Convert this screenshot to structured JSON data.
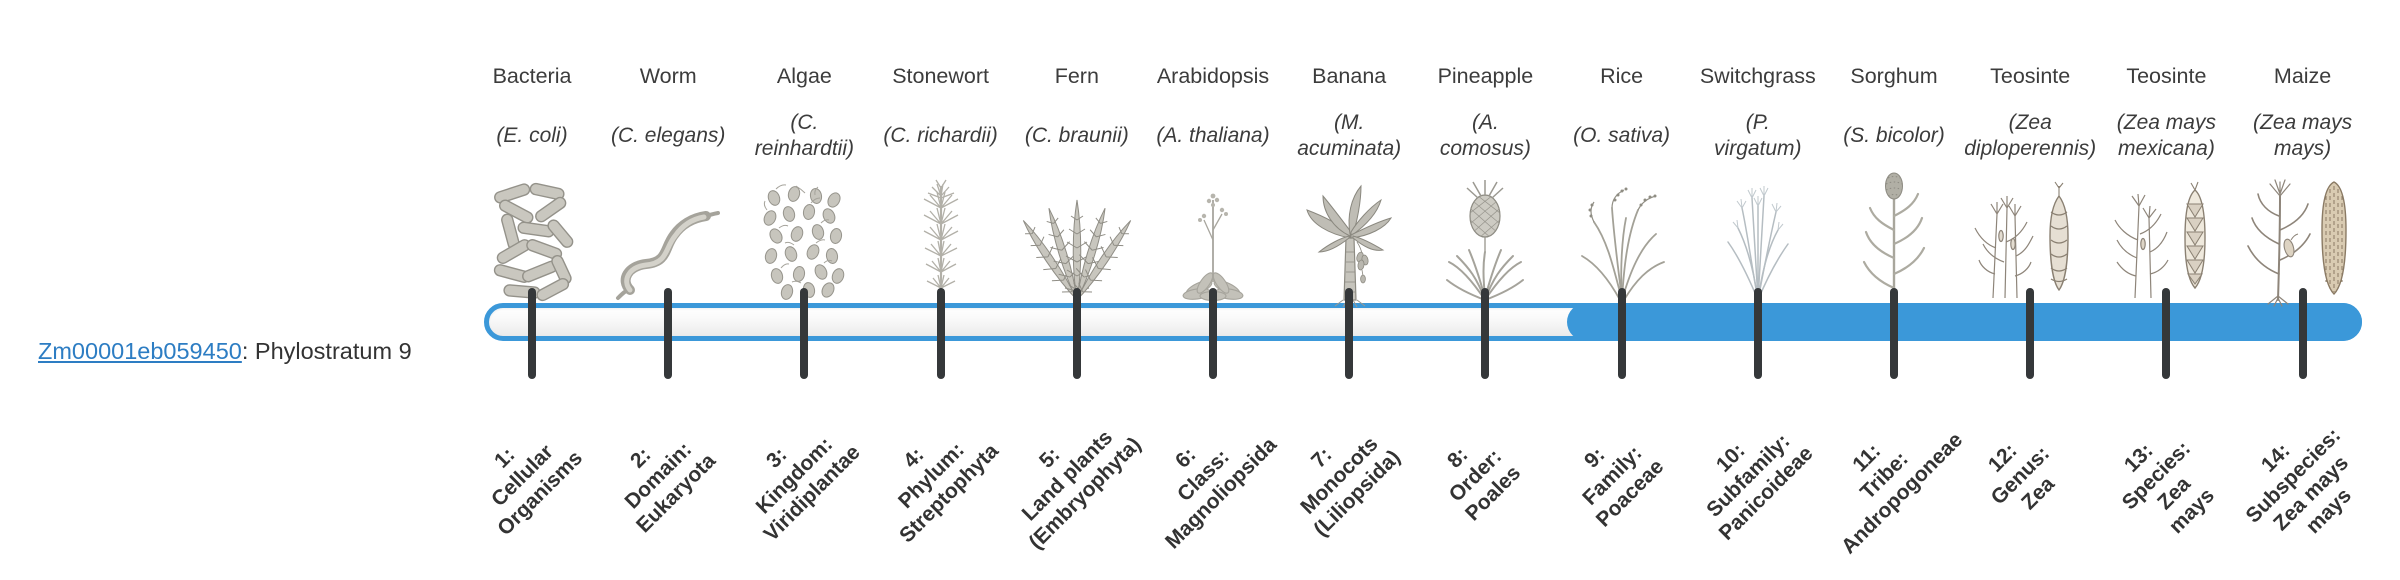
{
  "gene": {
    "id": "Zm00001eb059450",
    "suffix": ": Phylostratum 9"
  },
  "colors": {
    "bar_blue": "#3b98d9",
    "link_blue": "#2d7dc3",
    "tick_dark": "#35383a",
    "text_dark": "#3c3c3c"
  },
  "phylostrata": {
    "total": 14,
    "filled_from": 9,
    "columns": [
      {
        "num": 1,
        "name": "Bacteria",
        "species": "(E. coli)",
        "icon": "bacteria",
        "stratum": "1:\nCellular\nOrganisms"
      },
      {
        "num": 2,
        "name": "Worm",
        "species": "(C. elegans)",
        "icon": "worm",
        "stratum": "2:\nDomain:\nEukaryota"
      },
      {
        "num": 3,
        "name": "Algae",
        "species": "(C.\nreinhardtii)",
        "icon": "algae",
        "stratum": "3:\nKingdom:\nViridiplantae"
      },
      {
        "num": 4,
        "name": "Stonewort",
        "species": "(C. richardii)",
        "icon": "stonewort",
        "stratum": "4:\nPhylum:\nStreptophyta"
      },
      {
        "num": 5,
        "name": "Fern",
        "species": "(C. braunii)",
        "icon": "fern",
        "stratum": "5:\nLand plants\n(Embryophyta)"
      },
      {
        "num": 6,
        "name": "Arabidopsis",
        "species": "(A. thaliana)",
        "icon": "arabidopsis",
        "stratum": "6:\nClass:\nMagnoliopsida"
      },
      {
        "num": 7,
        "name": "Banana",
        "species": "(M.\nacuminata)",
        "icon": "banana",
        "stratum": "7:\nMonocots\n(Liliopsida)"
      },
      {
        "num": 8,
        "name": "Pineapple",
        "species": "(A.\ncomosus)",
        "icon": "pineapple",
        "stratum": "8:\nOrder:\nPoales"
      },
      {
        "num": 9,
        "name": "Rice",
        "species": "(O. sativa)",
        "icon": "rice",
        "stratum": "9:\nFamily:\nPoaceae"
      },
      {
        "num": 10,
        "name": "Switchgrass",
        "species": "(P.\nvirgatum)",
        "icon": "switchgrass",
        "stratum": "10:\nSubfamily:\nPanicoideae"
      },
      {
        "num": 11,
        "name": "Sorghum",
        "species": "(S. bicolor)",
        "icon": "sorghum",
        "stratum": "11:\nTribe:\nAndropogoneae"
      },
      {
        "num": 12,
        "name": "Teosinte",
        "species": "(Zea\ndiploperennis)",
        "icon": "teosinte-diploperennis",
        "stratum": "12:\nGenus:\nZea"
      },
      {
        "num": 13,
        "name": "Teosinte",
        "species": "(Zea mays\nmexicana)",
        "icon": "teosinte-mexicana",
        "stratum": "13:\nSpecies:\nZea\nmays"
      },
      {
        "num": 14,
        "name": "Maize",
        "species": "(Zea mays\nmays)",
        "icon": "maize",
        "stratum": "14:\nSubspecies:\nZea mays\nmays"
      }
    ]
  }
}
